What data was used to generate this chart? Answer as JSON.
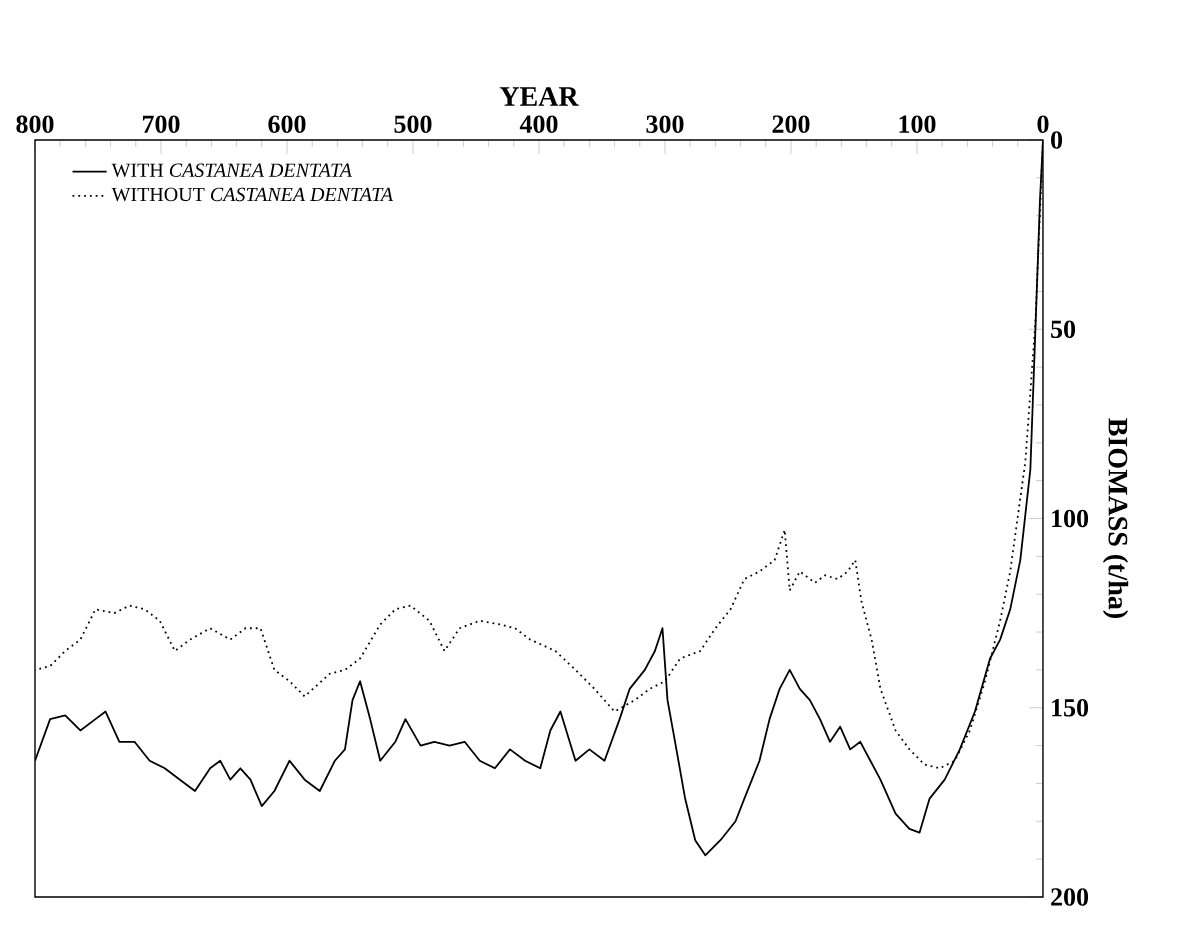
{
  "chart_data": {
    "type": "line",
    "xlabel": "YEAR",
    "ylabel": "BIOMASS (t/ha)",
    "xlim": [
      800,
      0
    ],
    "ylim": [
      200,
      0
    ],
    "xticks": [
      0,
      100,
      200,
      300,
      400,
      500,
      600,
      700,
      800
    ],
    "yticks": [
      0,
      50,
      100,
      150,
      200
    ],
    "legend": "top left",
    "marker": "none",
    "grid": false,
    "series": [
      {
        "name": "WITH *CASTANEA DENTATA*",
        "color": "#000000",
        "line_style": "solid",
        "x": [
          0,
          2.4,
          6,
          10,
          18,
          26,
          34,
          42,
          54,
          66,
          78,
          90,
          98,
          106,
          117,
          129,
          137,
          145,
          153,
          161,
          169,
          177,
          185,
          193,
          201,
          209,
          217,
          225,
          237,
          244,
          256,
          268,
          276,
          284,
          292,
          298,
          302,
          308,
          316,
          328,
          336,
          348,
          360,
          371,
          383,
          391,
          399,
          411,
          423,
          435,
          447,
          459,
          471,
          483,
          494,
          506,
          514,
          526,
          534,
          542,
          548,
          554,
          562,
          574,
          586,
          598,
          610,
          620,
          629,
          637,
          645,
          653,
          661,
          673,
          685,
          697,
          709,
          721,
          733,
          744,
          752,
          764,
          776,
          788,
          800
        ],
        "values": [
          0,
          16,
          50,
          87,
          111,
          124,
          132,
          137,
          151,
          161,
          169,
          174,
          183,
          182,
          178,
          169,
          164,
          159,
          161,
          155,
          159,
          153,
          148,
          145,
          140,
          145,
          153,
          164,
          174,
          180,
          185,
          189,
          185,
          174,
          159,
          148,
          129,
          135,
          140,
          145,
          153,
          164,
          161,
          164,
          151,
          156,
          166,
          164,
          161,
          166,
          164,
          159,
          160,
          159,
          160,
          153,
          159,
          164,
          153,
          143,
          148,
          161,
          164,
          172,
          169,
          164,
          172,
          176,
          169,
          166,
          169,
          164,
          166,
          172,
          169,
          166,
          164,
          159,
          159,
          151,
          153,
          156,
          152,
          153,
          164
        ]
      },
      {
        "name": "WITHOUT *CASTANEA DENTATA*",
        "color": "#000000",
        "line_style": "dotted",
        "x": [
          0,
          6,
          14,
          26,
          34,
          46,
          58,
          70,
          82,
          94,
          106,
          117,
          129,
          136,
          144,
          149,
          155,
          163,
          173,
          181,
          193,
          201,
          205,
          213,
          225,
          237,
          248,
          260,
          272,
          288,
          300,
          312,
          324,
          340,
          356,
          371,
          387,
          407,
          419,
          431,
          447,
          463,
          475,
          487,
          502,
          514,
          526,
          542,
          554,
          566,
          586,
          598,
          610,
          621,
          633,
          645,
          661,
          677,
          689,
          701,
          713,
          725,
          737,
          752,
          764,
          776,
          788,
          800
        ],
        "values": [
          0,
          48,
          85,
          114,
          127,
          143,
          156,
          164,
          166,
          165,
          161,
          156,
          145,
          132,
          122,
          111,
          114,
          116,
          115,
          117,
          114,
          119,
          103,
          111,
          114,
          116,
          124,
          129,
          135,
          137,
          143,
          145,
          148,
          151,
          145,
          140,
          135,
          132,
          129,
          128,
          127,
          129,
          135,
          127,
          123,
          124,
          128,
          137,
          140,
          141,
          147,
          143,
          140,
          129,
          129,
          132,
          129,
          132,
          135,
          127,
          124,
          123,
          125,
          124,
          132,
          135,
          139,
          140
        ]
      }
    ]
  }
}
